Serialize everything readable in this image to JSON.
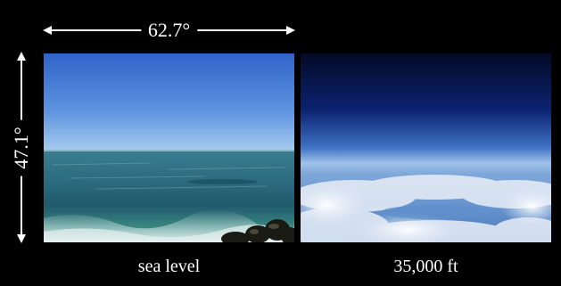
{
  "measurements": {
    "horizontal_fov": "62.7°",
    "vertical_fov": "47.1°"
  },
  "photos": [
    {
      "caption": "sea level",
      "subject": "ocean horizon view from shore"
    },
    {
      "caption": "35,000 ft",
      "subject": "view above clouds from aircraft"
    }
  ],
  "colors": {
    "background": "#000000",
    "sea_sky_top": "#2f63c9",
    "sea_sky_horizon": "#a9cdef",
    "sea_water": "#2f6f86",
    "alt_sky_top": "#06123a",
    "alt_sky_horizon": "#9fc2ea",
    "cloud": "#e9eef7"
  }
}
